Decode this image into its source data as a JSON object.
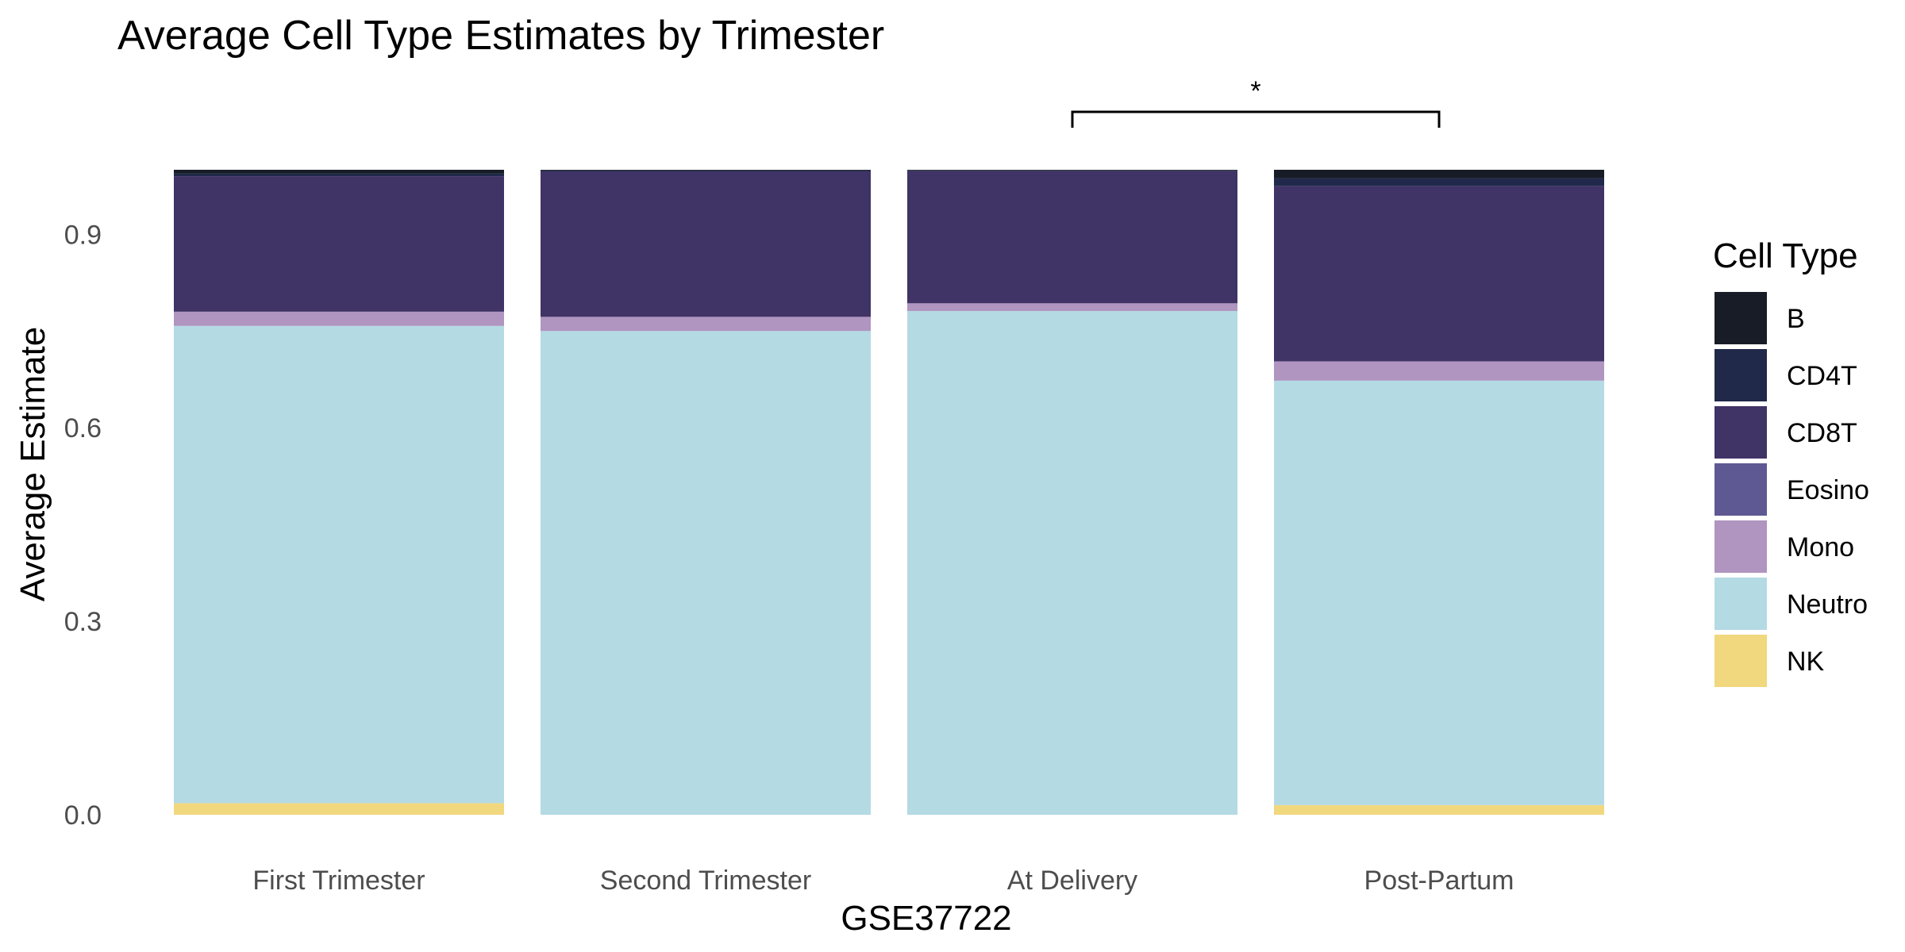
{
  "chart_data": {
    "type": "bar",
    "stacked": true,
    "title": "Average Cell Type Estimates by Trimester",
    "xlabel": "GSE37722",
    "ylabel": "Average Estimate",
    "ylim": [
      0,
      1.0
    ],
    "yticks": [
      "0.0",
      "0.3",
      "0.6",
      "0.9"
    ],
    "ytick_values": [
      0,
      0.3,
      0.6,
      0.9
    ],
    "grid": false,
    "legend_position": "right",
    "legend_title": "Cell Type",
    "categories": [
      "First Trimester",
      "Second Trimester",
      "At Delivery",
      "Post-Partum"
    ],
    "series": [
      {
        "name": "NK",
        "color": "#F1D77E",
        "values": [
          0.018,
          0.0,
          0.0,
          0.015
        ]
      },
      {
        "name": "Neutro",
        "color": "#B4DAE4",
        "values": [
          0.74,
          0.75,
          0.781,
          0.658
        ]
      },
      {
        "name": "Mono",
        "color": "#AF95C0",
        "values": [
          0.022,
          0.022,
          0.012,
          0.03
        ]
      },
      {
        "name": "Eosino",
        "color": "#5E5993",
        "values": [
          0.0,
          0.0,
          0.0,
          0.0
        ]
      },
      {
        "name": "CD8T",
        "color": "#403366",
        "values": [
          0.21,
          0.225,
          0.205,
          0.272
        ]
      },
      {
        "name": "CD4T",
        "color": "#20294A",
        "values": [
          0.004,
          0.002,
          0.001,
          0.012
        ]
      },
      {
        "name": "B",
        "color": "#181C26",
        "values": [
          0.006,
          0.001,
          0.001,
          0.013
        ]
      }
    ],
    "legend_order": [
      "B",
      "CD4T",
      "CD8T",
      "Eosino",
      "Mono",
      "Neutro",
      "NK"
    ],
    "annotations": [
      {
        "type": "significance_bracket",
        "from": "At Delivery",
        "to": "Post-Partum",
        "label": "*"
      }
    ]
  }
}
